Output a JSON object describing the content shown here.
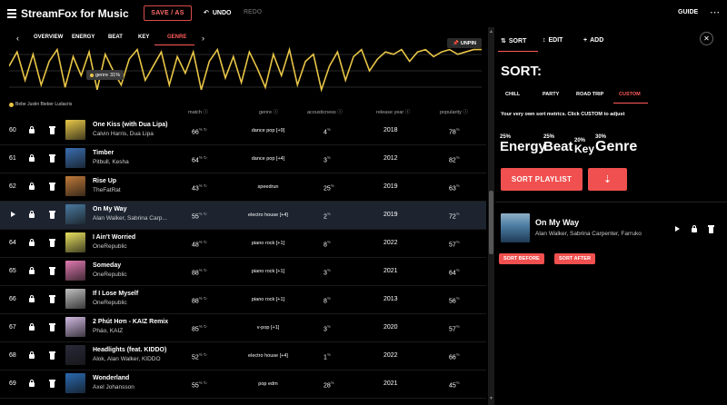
{
  "app": {
    "title": "StreamFox for Music",
    "save_as": "SAVE / AS",
    "undo": "UNDO",
    "redo": "REDO",
    "guide": "GUIDE"
  },
  "left_panel": {
    "tabs": [
      {
        "label": "OVERVIEW"
      },
      {
        "label": "ENERGY"
      },
      {
        "label": "BEAT"
      },
      {
        "label": "KEY"
      },
      {
        "label": "GENRE",
        "active": true
      }
    ],
    "unpin_label": "UNPIN",
    "chart_tooltip": {
      "label": "genre",
      "value": "31%"
    },
    "artist_strip": "Bebe   Justin Bieber   Ludacris",
    "columns": {
      "match": "match",
      "genre": "genre",
      "acousticness": "acousticness",
      "release_year": "release year",
      "popularity": "popularity"
    },
    "rows": [
      {
        "num": "60",
        "title": "One Kiss (with Dua Lipa)",
        "artist": "Calvin Harris, Dua Lipa",
        "match": "66",
        "genre": "dance pop [+9]",
        "acousticness": "4",
        "year": "2018",
        "popularity": "78",
        "art": "#e8c84a"
      },
      {
        "num": "61",
        "title": "Timber",
        "artist": "Pitbull, Kesha",
        "match": "64",
        "genre": "dance pop [+4]",
        "acousticness": "3",
        "year": "2012",
        "popularity": "82",
        "art": "#3a6fb0"
      },
      {
        "num": "62",
        "title": "Rise Up",
        "artist": "TheFatRat",
        "match": "43",
        "genre": "speedrun",
        "acousticness": "25",
        "year": "2019",
        "popularity": "63",
        "art": "#c07a3a"
      },
      {
        "num": "",
        "title": "On My Way",
        "artist": "Alan Walker, Sabrina Carp...",
        "match": "55",
        "genre": "electro house [+4]",
        "acousticness": "2",
        "year": "2019",
        "popularity": "72",
        "art": "#4a7aa0",
        "selected": true
      },
      {
        "num": "64",
        "title": "I Ain't Worried",
        "artist": "OneRepublic",
        "match": "48",
        "genre": "piano rock [+1]",
        "acousticness": "8",
        "year": "2022",
        "popularity": "57",
        "art": "#e8e060"
      },
      {
        "num": "65",
        "title": "Someday",
        "artist": "OneRepublic",
        "match": "88",
        "genre": "piano rock [+1]",
        "acousticness": "3",
        "year": "2021",
        "popularity": "64",
        "art": "#e07ab0"
      },
      {
        "num": "66",
        "title": "If I Lose Myself",
        "artist": "OneRepublic",
        "match": "88",
        "genre": "piano rock [+1]",
        "acousticness": "8",
        "year": "2013",
        "popularity": "56",
        "art": "#c0c0c0"
      },
      {
        "num": "67",
        "title": "2 Phút Hơn - KAIZ Remix",
        "artist": "Pháo, KAIZ",
        "match": "85",
        "genre": "v-pop [+1]",
        "acousticness": "3",
        "year": "2020",
        "popularity": "57",
        "art": "#d0b8e0"
      },
      {
        "num": "68",
        "title": "Headlights (feat. KIDDO)",
        "artist": "Alok, Alan Walker, KIDDO",
        "match": "52",
        "genre": "electro house [+4]",
        "acousticness": "1",
        "year": "2022",
        "popularity": "66",
        "art": "#2a2a3a"
      },
      {
        "num": "69",
        "title": "Wonderland",
        "artist": "Axel Johansson",
        "match": "55",
        "genre": "pop edm",
        "acousticness": "28",
        "year": "2021",
        "popularity": "45",
        "art": "#2a6ab0"
      }
    ]
  },
  "right_panel": {
    "tabs": [
      {
        "label": "SORT",
        "active": true
      },
      {
        "label": "EDIT"
      },
      {
        "label": "ADD"
      }
    ],
    "heading": "SORT:",
    "presets": [
      {
        "label": "CHILL"
      },
      {
        "label": "PARTY"
      },
      {
        "label": "ROAD TRIP"
      },
      {
        "label": "CUSTOM",
        "active": true
      }
    ],
    "custom_note": "Your very own sort metrics. Click CUSTOM to adjust",
    "metrics": [
      {
        "pct": "25%",
        "name": "Energy"
      },
      {
        "pct": "25%",
        "name": "Beat"
      },
      {
        "pct": "20%",
        "name": "Key"
      },
      {
        "pct": "30%",
        "name": "Genre"
      }
    ],
    "sort_playlist": "SORT PLAYLIST",
    "now_playing": {
      "title": "On My Way",
      "artist": "Alan Walker, Sabrina Carpenter, Farruko"
    },
    "sort_before": "SORT BEFORE",
    "sort_after": "SORT AFTER"
  },
  "colors": {
    "accent": "#f0504f",
    "chart_line": "#e8c547",
    "selected_row": "#1d2430"
  },
  "chart_data": {
    "type": "line",
    "series": [
      {
        "values": [
          0.6,
          0.9,
          0.3,
          0.85,
          0.2,
          0.7,
          0.95,
          0.15,
          0.8,
          0.4,
          0.9,
          0.1,
          0.85,
          0.5,
          0.2,
          0.75,
          0.95,
          0.3,
          0.6,
          0.9,
          0.2,
          0.8,
          0.45,
          0.9,
          0.1,
          0.7,
          0.95,
          0.35,
          0.8,
          0.25,
          0.9,
          0.55,
          0.15,
          0.85,
          0.4,
          0.95,
          0.2,
          0.7,
          0.85,
          0.1,
          0.6,
          0.9,
          0.3,
          0.8,
          0.95,
          0.5,
          0.75,
          0.9,
          0.85,
          0.95,
          0.7,
          0.9,
          0.95,
          0.8,
          0.9,
          0.95,
          0.85,
          0.9,
          0.95,
          0.95
        ]
      }
    ],
    "ylim": [
      0,
      1
    ],
    "grid": true
  }
}
